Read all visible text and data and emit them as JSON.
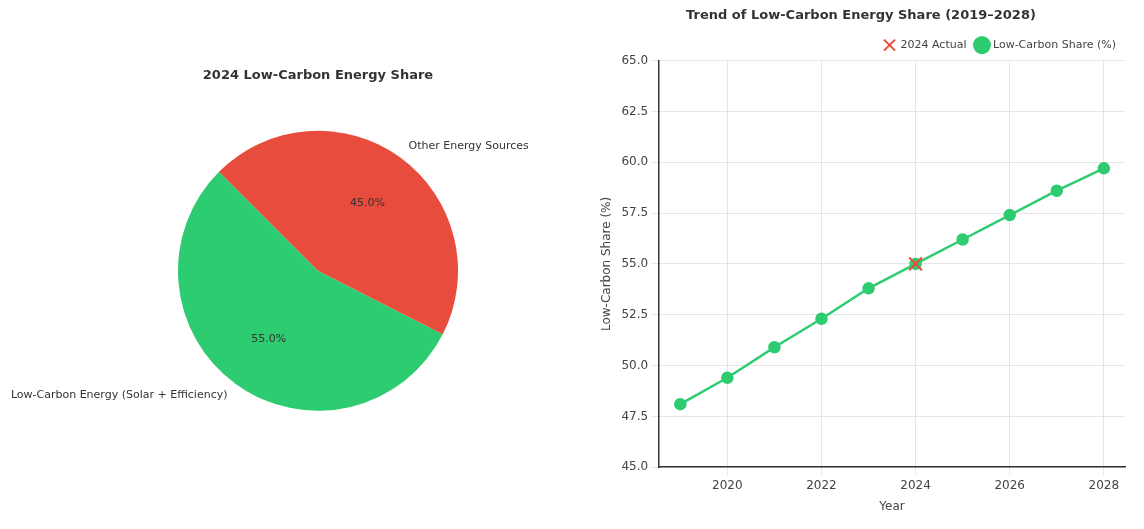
{
  "chart_data": [
    {
      "type": "pie",
      "title": "2024 Low-Carbon Energy Share",
      "categories": [
        "Low-Carbon Energy (Solar + Efficiency)",
        "Other Energy Sources"
      ],
      "values": [
        55,
        45
      ],
      "colors": [
        "#2ecc71",
        "#e74c3c"
      ],
      "value_labels": [
        "55.0%",
        "45.0%"
      ],
      "legend": false
    },
    {
      "type": "line",
      "title": "Trend of Low-Carbon Energy Share (2019–2028)",
      "xlabel": "Year",
      "ylabel": "Low-Carbon Share (%)",
      "xlim": [
        2018.55,
        2028.45
      ],
      "xticks": [
        2020,
        2022,
        2024,
        2026,
        2028
      ],
      "ylim": [
        45,
        65
      ],
      "yticks": [
        {
          "value": 45,
          "label": "45.0"
        },
        {
          "value": 47.5,
          "label": "47.5"
        },
        {
          "value": 50,
          "label": "50.0"
        },
        {
          "value": 52.5,
          "label": "52.5"
        },
        {
          "value": 55,
          "label": "55.0"
        },
        {
          "value": 57.5,
          "label": "57.5"
        },
        {
          "value": 60,
          "label": "60.0"
        },
        {
          "value": 62.5,
          "label": "62.5"
        },
        {
          "value": 65,
          "label": "65.0"
        }
      ],
      "grid": true,
      "legend": "top right",
      "series": [
        {
          "name": "Low-Carbon Share (%)",
          "type": "line",
          "color": "#2ecc71",
          "marker": "circle",
          "x": [
            2019,
            2020,
            2021,
            2022,
            2023,
            2024,
            2025,
            2026,
            2027,
            2028
          ],
          "values": [
            48.1,
            49.4,
            50.9,
            52.3,
            53.8,
            55.0,
            56.2,
            57.4,
            58.6,
            59.7
          ]
        },
        {
          "name": "2024 Actual",
          "type": "scatter",
          "color": "#e74c3c",
          "marker": "cross",
          "x": [
            2024
          ],
          "values": [
            55.0
          ]
        }
      ]
    }
  ]
}
